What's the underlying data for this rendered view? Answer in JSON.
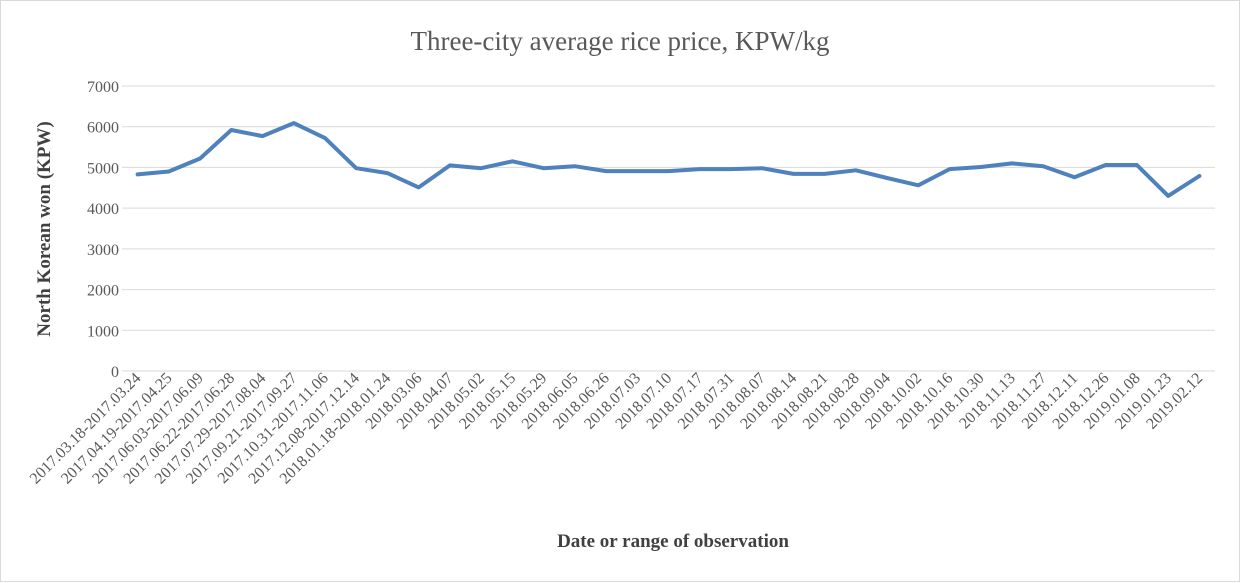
{
  "chart_data": {
    "type": "line",
    "title": "Three-city average rice price, KPW/kg",
    "xlabel": "Date or range of observation",
    "ylabel": "North Korean won (KPW)",
    "ylim": [
      0,
      7000
    ],
    "yticks": [
      0,
      1000,
      2000,
      3000,
      4000,
      5000,
      6000,
      7000
    ],
    "grid": true,
    "legend": "none",
    "line_color": "#4f81bd",
    "categories": [
      "2017.03.18-2017.03.24",
      "2017.04.19-2017.04.25",
      "2017.06.03-2017.06.09",
      "2017.06.22-2017.06.28",
      "2017.07.29-2017.08.04",
      "2017.09.21-2017.09.27",
      "2017.10.31-2017.11.06",
      "2017.12.08-2017.12.14",
      "2018.01.18-2018.01.24",
      "2018.03.06",
      "2018.04.07",
      "2018.05.02",
      "2018.05.15",
      "2018.05.29",
      "2018.06.05",
      "2018.06.26",
      "2018.07.03",
      "2018.07.10",
      "2018.07.17",
      "2018.07.31",
      "2018.08.07",
      "2018.08.14",
      "2018.08.21",
      "2018.08.28",
      "2018.09.04",
      "2018.10.02",
      "2018.10.16",
      "2018.10.30",
      "2018.11.13",
      "2018.11.27",
      "2018.12.11",
      "2018.12.26",
      "2019.01.08",
      "2019.01.23",
      "2019.02.12"
    ],
    "series": [
      {
        "values": [
          4830,
          4900,
          5220,
          5920,
          5770,
          6090,
          5720,
          4980,
          4860,
          4510,
          5050,
          4980,
          5150,
          4980,
          5030,
          4910,
          4910,
          4910,
          4960,
          4960,
          4980,
          4840,
          4840,
          4930,
          4740,
          4560,
          4960,
          5010,
          5100,
          5030,
          4760,
          5060,
          5060,
          4300,
          4790
        ]
      }
    ]
  }
}
